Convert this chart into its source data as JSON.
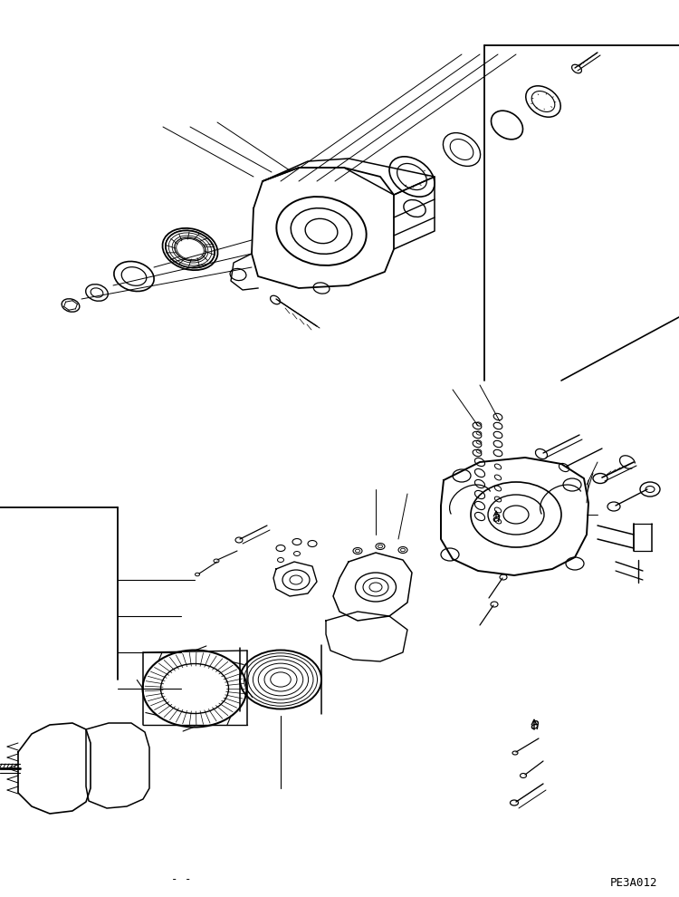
{
  "title": "",
  "background_color": "#ffffff",
  "page_code": "PE3A012",
  "page_dash": "--",
  "fig_width": 7.5,
  "fig_height": 9.9,
  "dpi": 100
}
